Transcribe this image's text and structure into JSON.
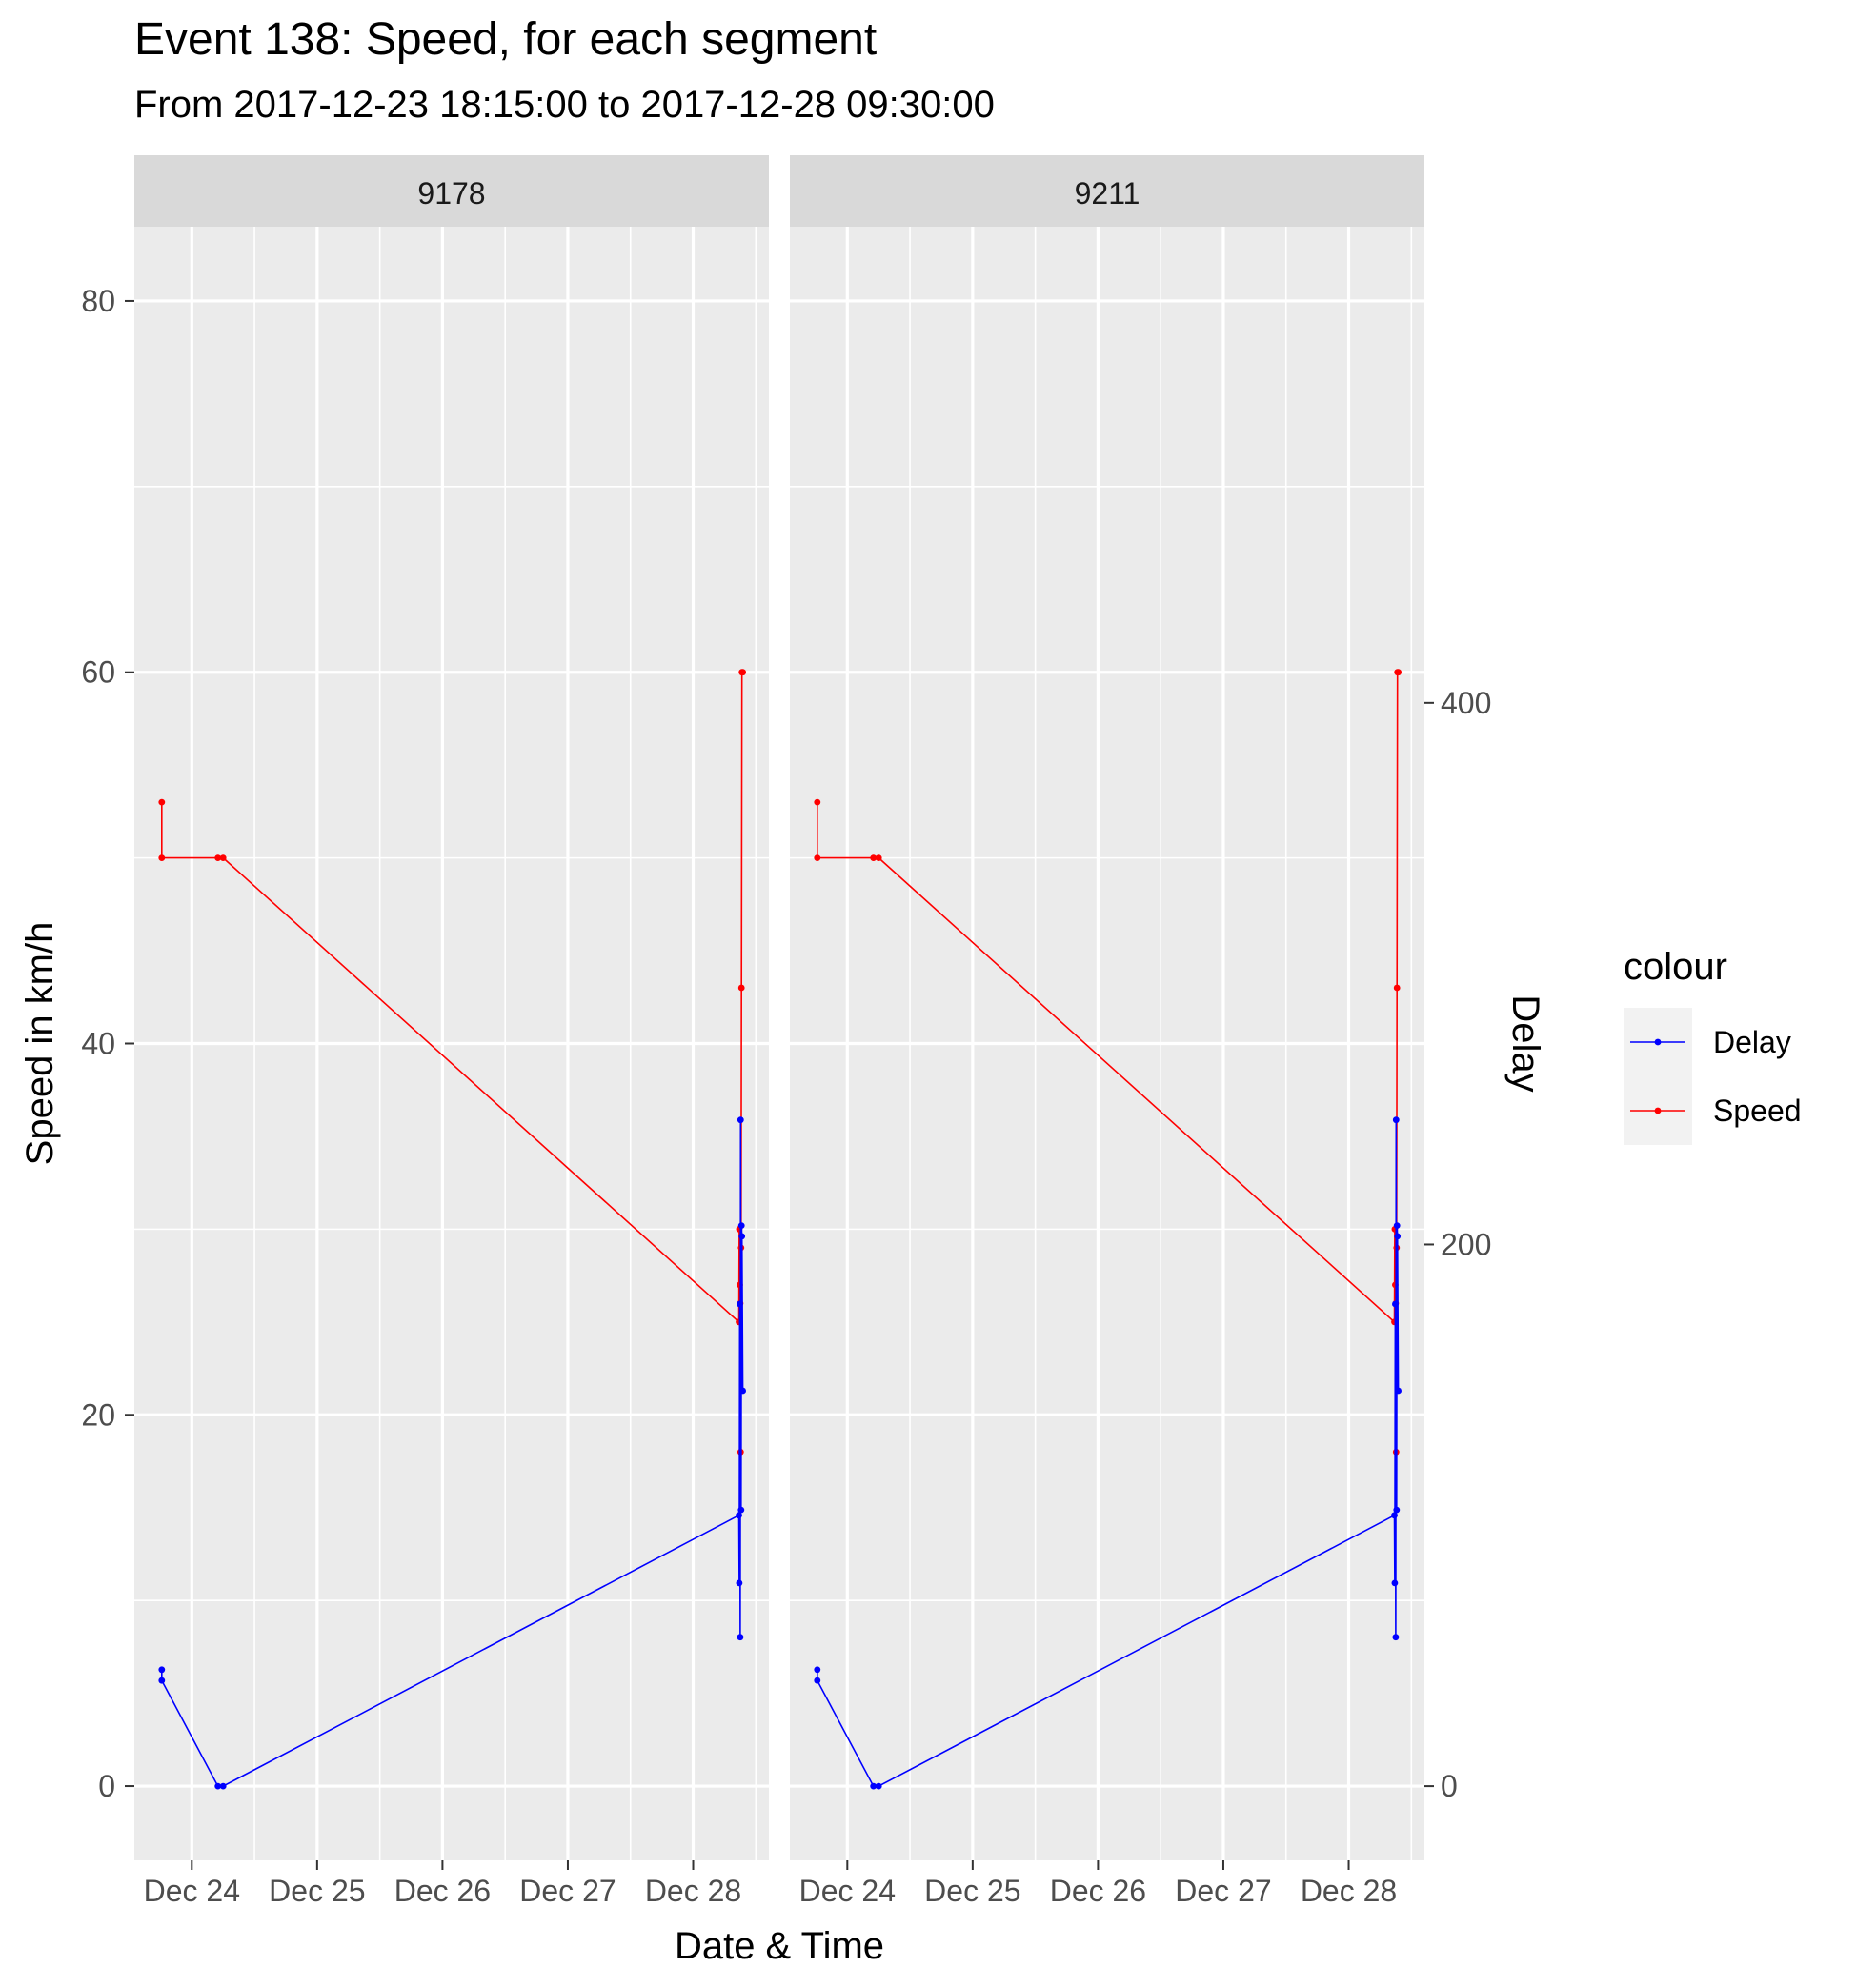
{
  "chart_data": {
    "type": "line",
    "title": "Event 138: Speed, for each segment",
    "subtitle": "From 2017-12-23 18:15:00 to 2017-12-28 09:30:00",
    "xlabel": "Date & Time",
    "ylabel": "Speed in km/h",
    "y2label": "Delay",
    "xlim": [
      "2017-12-23 13:00",
      "2017-12-28 14:30"
    ],
    "ylim": [
      -4,
      84
    ],
    "y2lim": [
      -27.4,
      575.8
    ],
    "x_ticks": [
      "Dec 24",
      "Dec 25",
      "Dec 26",
      "Dec 27",
      "Dec 28"
    ],
    "y_ticks": [
      0,
      20,
      40,
      60,
      80
    ],
    "y2_ticks": [
      0,
      200,
      400
    ],
    "grid": true,
    "legend": {
      "title": "colour",
      "position": "right",
      "entries": [
        "Delay",
        "Speed"
      ]
    },
    "colors": {
      "Delay": "#0000ff",
      "Speed": "#ff0000"
    },
    "facets": [
      {
        "label": "9178",
        "series": [
          {
            "name": "Speed",
            "axis": "left",
            "points": [
              [
                "2017-12-23 18:15",
                53
              ],
              [
                "2017-12-23 18:15",
                50
              ],
              [
                "2017-12-24 05:00",
                50
              ],
              [
                "2017-12-24 06:00",
                50
              ],
              [
                "2017-12-28 08:45",
                25
              ],
              [
                "2017-12-28 08:50",
                30
              ],
              [
                "2017-12-28 08:55",
                27
              ],
              [
                "2017-12-28 09:00",
                26
              ],
              [
                "2017-12-28 09:05",
                18
              ],
              [
                "2017-12-28 09:10",
                29
              ],
              [
                "2017-12-28 09:15",
                43
              ],
              [
                "2017-12-28 09:20",
                60
              ],
              [
                "2017-12-28 09:30",
                60
              ]
            ]
          },
          {
            "name": "Delay",
            "axis": "right",
            "points": [
              [
                "2017-12-23 18:15",
                43
              ],
              [
                "2017-12-23 18:15",
                39
              ],
              [
                "2017-12-24 05:00",
                0
              ],
              [
                "2017-12-24 06:00",
                0
              ],
              [
                "2017-12-28 08:45",
                100
              ],
              [
                "2017-12-28 08:50",
                75
              ],
              [
                "2017-12-28 08:55",
                178
              ],
              [
                "2017-12-28 09:00",
                55
              ],
              [
                "2017-12-28 09:05",
                246
              ],
              [
                "2017-12-28 09:10",
                102
              ],
              [
                "2017-12-28 09:15",
                207
              ],
              [
                "2017-12-28 09:20",
                203
              ],
              [
                "2017-12-28 09:30",
                146
              ]
            ]
          }
        ]
      },
      {
        "label": "9211",
        "series": [
          {
            "name": "Speed",
            "axis": "left",
            "points": [
              [
                "2017-12-23 18:15",
                53
              ],
              [
                "2017-12-23 18:15",
                50
              ],
              [
                "2017-12-24 05:00",
                50
              ],
              [
                "2017-12-24 06:00",
                50
              ],
              [
                "2017-12-28 08:45",
                25
              ],
              [
                "2017-12-28 08:50",
                30
              ],
              [
                "2017-12-28 08:55",
                27
              ],
              [
                "2017-12-28 09:00",
                26
              ],
              [
                "2017-12-28 09:05",
                18
              ],
              [
                "2017-12-28 09:10",
                29
              ],
              [
                "2017-12-28 09:15",
                43
              ],
              [
                "2017-12-28 09:20",
                60
              ],
              [
                "2017-12-28 09:30",
                60
              ]
            ]
          },
          {
            "name": "Delay",
            "axis": "right",
            "points": [
              [
                "2017-12-23 18:15",
                43
              ],
              [
                "2017-12-23 18:15",
                39
              ],
              [
                "2017-12-24 05:00",
                0
              ],
              [
                "2017-12-24 06:00",
                0
              ],
              [
                "2017-12-28 08:45",
                100
              ],
              [
                "2017-12-28 08:50",
                75
              ],
              [
                "2017-12-28 08:55",
                178
              ],
              [
                "2017-12-28 09:00",
                55
              ],
              [
                "2017-12-28 09:05",
                246
              ],
              [
                "2017-12-28 09:10",
                102
              ],
              [
                "2017-12-28 09:15",
                207
              ],
              [
                "2017-12-28 09:20",
                203
              ],
              [
                "2017-12-28 09:30",
                146
              ]
            ]
          }
        ]
      }
    ]
  }
}
